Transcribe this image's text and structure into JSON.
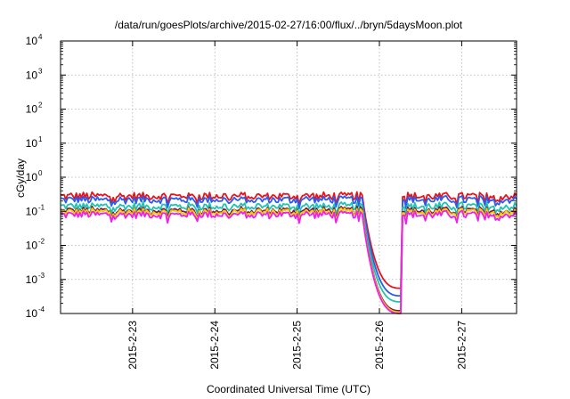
{
  "chart_data": {
    "type": "line",
    "title": "/data/run/goesPlots/archive/2015-02-27/16:00/flux/../bryn/5daysMoon.plot",
    "xlabel": "Coordinated Universal Time (UTC)",
    "ylabel": "cGy/day",
    "yscale": "log",
    "ylim": [
      0.0001,
      10000
    ],
    "y_ticks": [
      {
        "value": 0.0001,
        "mantissa": "10",
        "exp": "-4"
      },
      {
        "value": 0.001,
        "mantissa": "10",
        "exp": "-3"
      },
      {
        "value": 0.01,
        "mantissa": "10",
        "exp": "-2"
      },
      {
        "value": 0.1,
        "mantissa": "10",
        "exp": "-1"
      },
      {
        "value": 1,
        "mantissa": "10",
        "exp": "0"
      },
      {
        "value": 10,
        "mantissa": "10",
        "exp": "1"
      },
      {
        "value": 100,
        "mantissa": "10",
        "exp": "2"
      },
      {
        "value": 1000,
        "mantissa": "10",
        "exp": "3"
      },
      {
        "value": 10000,
        "mantissa": "10",
        "exp": "4"
      }
    ],
    "xlim": [
      "2015-02-22T03:00",
      "2015-02-27T16:00"
    ],
    "x_ticks": [
      {
        "value": "2015-02-23T00:00",
        "label": "2015-2-23"
      },
      {
        "value": "2015-02-24T00:00",
        "label": "2015-2-24"
      },
      {
        "value": "2015-02-25T00:00",
        "label": "2015-2-25"
      },
      {
        "value": "2015-02-26T00:00",
        "label": "2015-2-26"
      },
      {
        "value": "2015-02-27T00:00",
        "label": "2015-2-27"
      }
    ],
    "grid": true,
    "series": [
      {
        "color": "#e8141c",
        "quiet_level": 0.28,
        "dropout_end": 0.00055
      },
      {
        "color": "#2a5cf0",
        "quiet_level": 0.22,
        "dropout_end": 0.00033
      },
      {
        "color": "#1fc4b0",
        "quiet_level": 0.14,
        "dropout_end": 0.00022
      },
      {
        "color": "#7a1a4a",
        "quiet_level": 0.105,
        "dropout_end": 0.00012
      },
      {
        "color": "#f0d000",
        "quiet_level": 0.095,
        "dropout_end": 0.00011
      },
      {
        "color": "#f01cf0",
        "quiet_level": 0.08,
        "dropout_end": 0.0001
      }
    ],
    "events": {
      "dropout_start": "2015-02-25T19:00",
      "dropout_end": "2015-02-26T06:30"
    }
  }
}
